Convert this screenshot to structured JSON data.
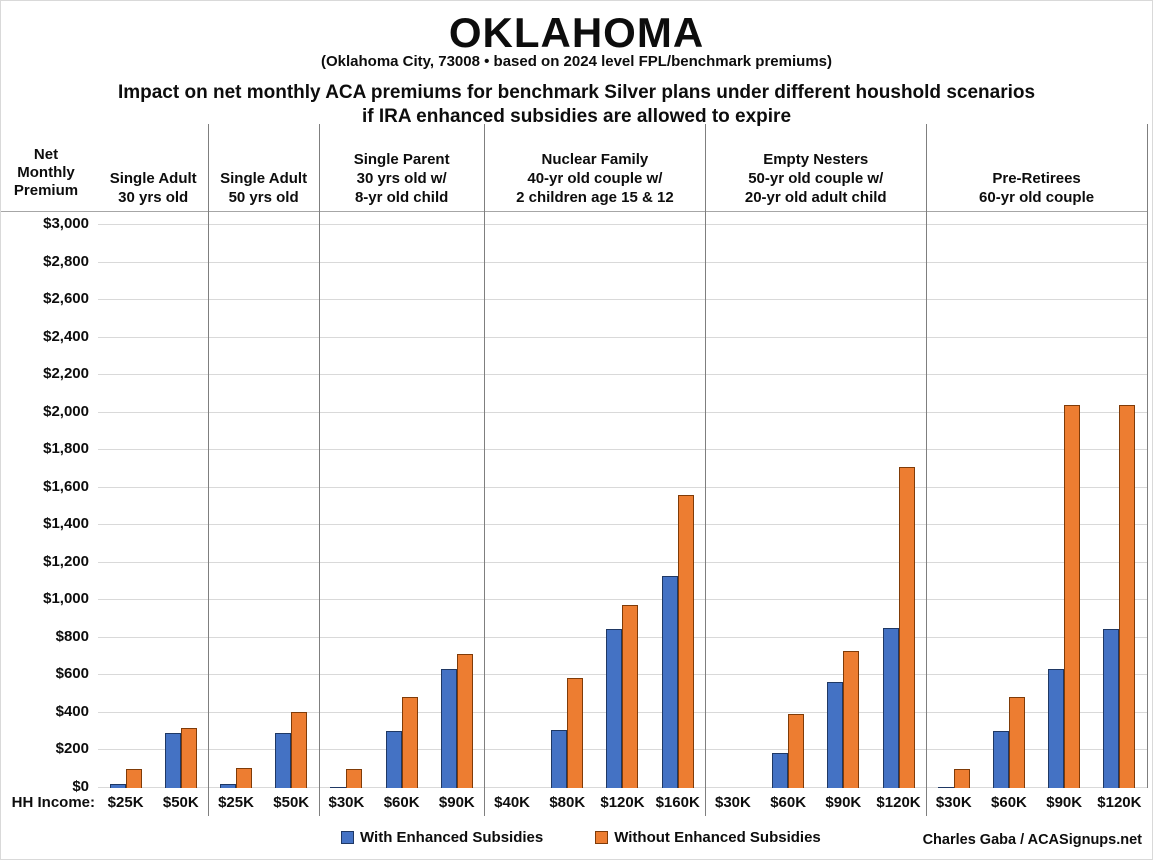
{
  "title": "OKLAHOMA",
  "subtitle": "(Oklahoma City, 73008 • based on 2024 level FPL/benchmark premiums)",
  "heading_line1": "Impact on net monthly ACA premiums for benchmark Silver plans under different houshold scenarios",
  "heading_line2": "if IRA enhanced subsidies are allowed to expire",
  "y_axis_title_lines": {
    "0": "Net",
    "1": "Monthly",
    "2": "Premium"
  },
  "x_axis_prefix": "HH Income:",
  "legend": {
    "items": {
      "0": {
        "label": "With Enhanced Subsidies",
        "color": "#4472C4",
        "border": "#1F3864"
      },
      "1": {
        "label": "Without Enhanced Subsidies",
        "color": "#ED7D31",
        "border": "#7F3B08"
      }
    }
  },
  "credit": "Charles Gaba / ACASignups.net",
  "chart_data": {
    "type": "bar",
    "title": "Impact on net monthly ACA premiums for benchmark Silver plans under different houshold scenarios if IRA enhanced subsidies are allowed to expire",
    "ylabel": "Net Monthly Premium",
    "xlabel": "HH Income",
    "ylim": [
      0,
      3000
    ],
    "ytick_step": 200,
    "grid": true,
    "legend_position": "bottom",
    "series": [
      "With Enhanced Subsidies",
      "Without Enhanced Subsidies"
    ],
    "colors": {
      "with_enhanced": "#4472C4",
      "with_enhanced_border": "#1F3864",
      "without_enhanced": "#ED7D31",
      "without_enhanced_border": "#7F3B08",
      "gridline": "#d9d9d9",
      "separator": "#7f7f7f"
    },
    "groups": [
      {
        "label_lines": [
          "Single Adult",
          "30 yrs old"
        ],
        "categories": [
          "$25K",
          "$50K"
        ],
        "values": [
          [
            20,
            295
          ],
          [
            100,
            320
          ]
        ]
      },
      {
        "label_lines": [
          "Single Adult",
          "50 yrs old"
        ],
        "categories": [
          "$25K",
          "$50K"
        ],
        "values": [
          [
            20,
            295
          ],
          [
            105,
            405
          ]
        ]
      },
      {
        "label_lines": [
          "Single Parent",
          "30 yrs old w/",
          "8-yr old child"
        ],
        "categories": [
          "$30K",
          "$60K",
          "$90K"
        ],
        "values": [
          [
            5,
            305,
            635
          ],
          [
            100,
            485,
            715
          ]
        ]
      },
      {
        "label_lines": [
          "Nuclear Family",
          "40-yr old couple w/",
          "2 children age 15 & 12"
        ],
        "categories": [
          "$40K",
          "$80K",
          "$120K",
          "$160K"
        ],
        "values": [
          [
            0,
            310,
            845,
            1130
          ],
          [
            0,
            585,
            975,
            1560
          ]
        ]
      },
      {
        "label_lines": [
          "Empty Nesters",
          "50-yr old couple w/",
          "20-yr old adult child"
        ],
        "categories": [
          "$30K",
          "$60K",
          "$90K",
          "$120K"
        ],
        "values": [
          [
            0,
            185,
            565,
            850
          ],
          [
            0,
            395,
            730,
            1710
          ]
        ]
      },
      {
        "label_lines": [
          "Pre-Retirees",
          "60-yr old couple"
        ],
        "categories": [
          "$30K",
          "$60K",
          "$90K",
          "$120K"
        ],
        "values": [
          [
            5,
            305,
            635,
            845
          ],
          [
            100,
            485,
            2040,
            2040
          ]
        ]
      }
    ]
  }
}
